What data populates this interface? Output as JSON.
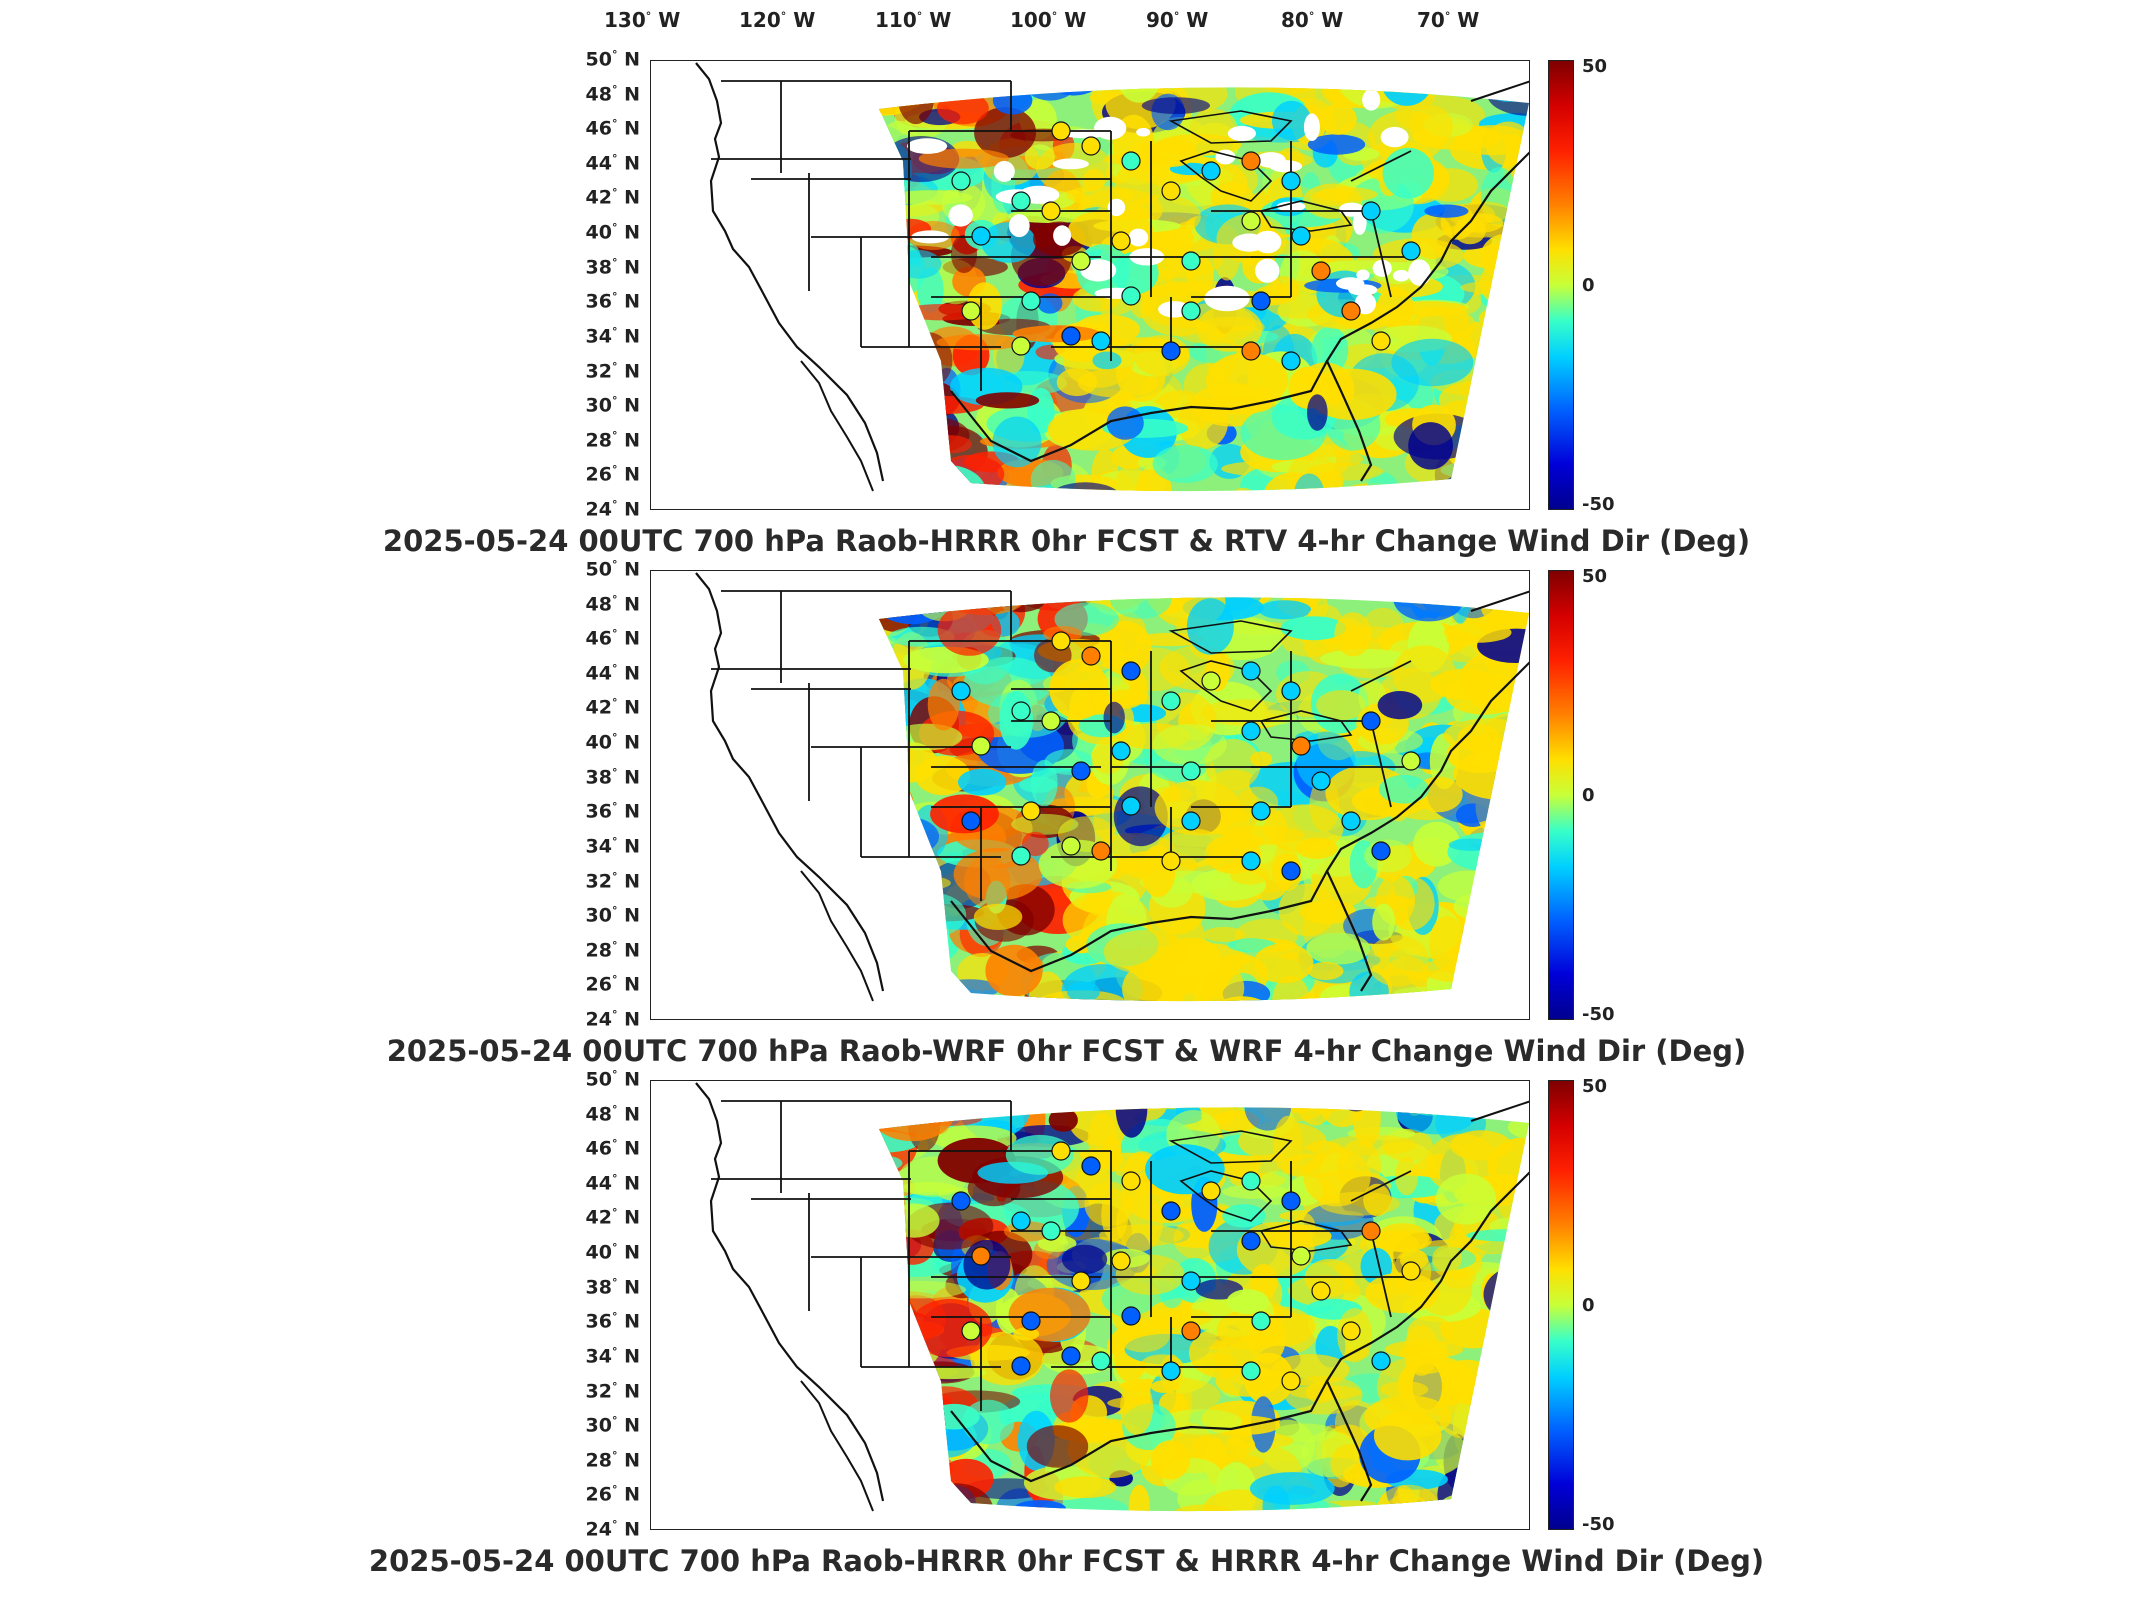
{
  "longitude_labels": [
    "130° W",
    "120° W",
    "110° W",
    "100° W",
    "90° W",
    "80° W",
    "70° W"
  ],
  "latitude_labels": [
    "50° N",
    "48° N",
    "46° N",
    "44° N",
    "42° N",
    "40° N",
    "38° N",
    "36° N",
    "34° N",
    "32° N",
    "30° N",
    "28° N",
    "26° N",
    "24° N"
  ],
  "colorbar": {
    "max_label": "50",
    "mid_label": "0",
    "min_label": "-50",
    "colors": [
      "#7f0000",
      "#ff2000",
      "#ff8000",
      "#ffdf00",
      "#c8ff38",
      "#38ffc8",
      "#00d0ff",
      "#0060ff",
      "#00008f"
    ]
  },
  "panels": [
    {
      "caption": "2025-05-24 00UTC 700 hPa Raob-HRRR 0hr FCST & RTV 4-hr Change Wind Dir (Deg)"
    },
    {
      "caption": "2025-05-24 00UTC 700 hPa Raob-WRF 0hr FCST & WRF 4-hr Change Wind Dir (Deg)"
    },
    {
      "caption": "2025-05-24 00UTC 700 hPa Raob-HRRR 0hr FCST & HRRR 4-hr Change Wind Dir (Deg)"
    }
  ]
}
